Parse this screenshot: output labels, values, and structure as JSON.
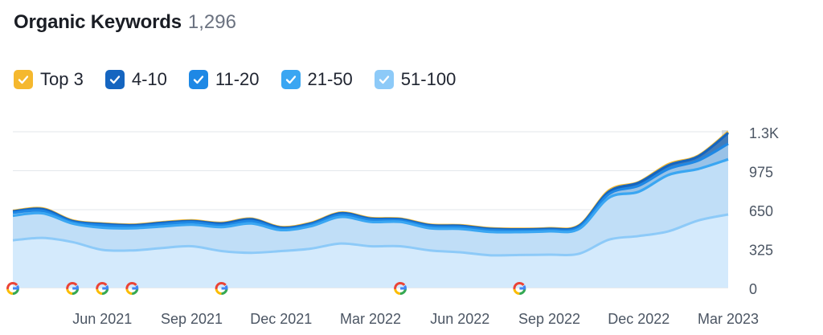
{
  "header": {
    "title": "Organic Keywords",
    "count": "1,296"
  },
  "legend": [
    {
      "label": "Top 3",
      "color": "#f5b82e"
    },
    {
      "label": "4-10",
      "color": "#1565c0"
    },
    {
      "label": "11-20",
      "color": "#1e88e5"
    },
    {
      "label": "21-50",
      "color": "#3aa6f2"
    },
    {
      "label": "51-100",
      "color": "#8dcaf8"
    }
  ],
  "chart_data": {
    "type": "area",
    "x": [
      "2021-03",
      "2021-04",
      "2021-05",
      "2021-06",
      "2021-07",
      "2021-08",
      "2021-09",
      "2021-10",
      "2021-11",
      "2021-12",
      "2022-01",
      "2022-02",
      "2022-03",
      "2022-04",
      "2022-05",
      "2022-06",
      "2022-07",
      "2022-08",
      "2022-09",
      "2022-10",
      "2022-11",
      "2022-12",
      "2023-01",
      "2023-02",
      "2023-03"
    ],
    "series": [
      {
        "name": "Top 3",
        "color": "#f5b82e",
        "values": [
          640,
          660,
          560,
          535,
          525,
          545,
          560,
          540,
          575,
          505,
          540,
          625,
          580,
          575,
          525,
          520,
          495,
          490,
          495,
          520,
          810,
          880,
          1030,
          1100,
          1300
        ]
      },
      {
        "name": "4-10",
        "color": "#1565c0",
        "values": [
          635,
          655,
          555,
          530,
          520,
          540,
          555,
          535,
          570,
          500,
          535,
          620,
          575,
          570,
          520,
          515,
          490,
          485,
          490,
          515,
          800,
          875,
          1020,
          1095,
          1290
        ]
      },
      {
        "name": "11-20",
        "color": "#1e88e5",
        "values": [
          625,
          640,
          545,
          520,
          510,
          528,
          545,
          520,
          555,
          490,
          525,
          608,
          565,
          560,
          510,
          505,
          480,
          475,
          480,
          505,
          780,
          850,
          990,
          1060,
          1200
        ]
      },
      {
        "name": "21-50",
        "color": "#3aa6f2",
        "values": [
          600,
          620,
          535,
          500,
          495,
          510,
          525,
          505,
          535,
          480,
          512,
          590,
          548,
          548,
          495,
          490,
          465,
          463,
          470,
          490,
          750,
          800,
          940,
          990,
          1070
        ]
      },
      {
        "name": "51-100",
        "color": "#8dcaf8",
        "values": [
          395,
          415,
          380,
          315,
          310,
          330,
          345,
          305,
          290,
          305,
          325,
          368,
          345,
          345,
          310,
          295,
          270,
          272,
          275,
          283,
          400,
          430,
          470,
          560,
          610
        ]
      }
    ],
    "y_ticks": [
      "0",
      "325",
      "650",
      "975",
      "1.3K"
    ],
    "ylim": [
      0,
      1300
    ],
    "x_ticks": [
      "Jun 2021",
      "Sep 2021",
      "Dec 2021",
      "Mar 2022",
      "Jun 2022",
      "Sep 2022",
      "Dec 2022",
      "Mar 2023"
    ],
    "x_tick_at": [
      "2021-06",
      "2021-09",
      "2021-12",
      "2022-03",
      "2022-06",
      "2022-09",
      "2022-12",
      "2023-03"
    ],
    "google_markers_at": [
      "2021-03",
      "2021-05",
      "2021-06",
      "2021-07",
      "2021-10",
      "2022-04",
      "2022-08"
    ],
    "grid": true
  }
}
